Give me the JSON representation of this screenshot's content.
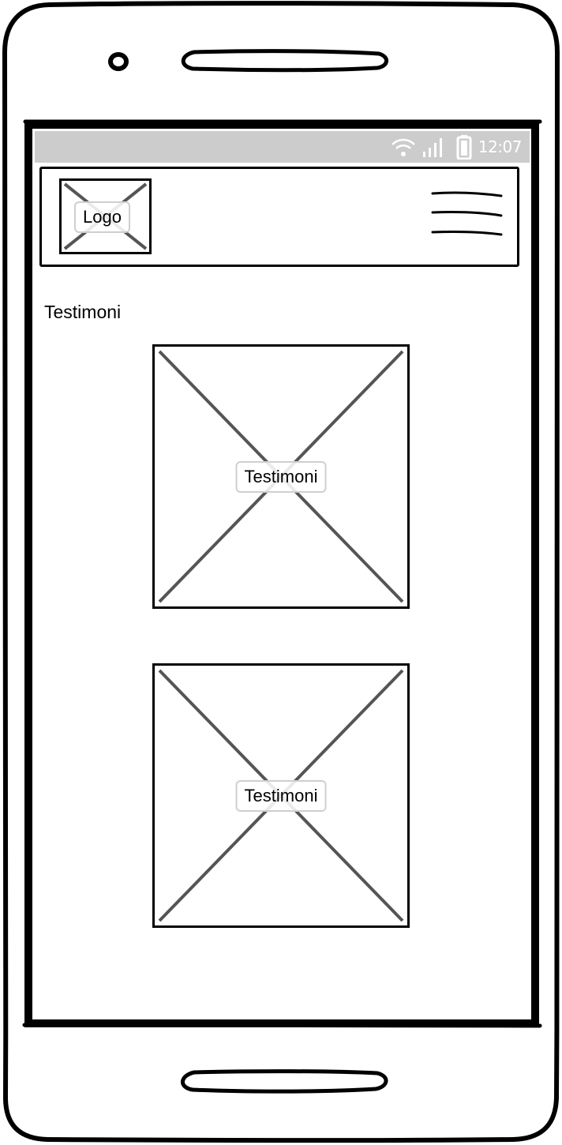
{
  "status_bar": {
    "time": "12:07",
    "icons": [
      "wifi-icon",
      "signal-icon",
      "battery-icon"
    ]
  },
  "header": {
    "logo_label": "Logo",
    "menu_icon": "hamburger-menu-icon"
  },
  "section": {
    "title": "Testimoni"
  },
  "testimonials": [
    {
      "label": "Testimoni"
    },
    {
      "label": "Testimoni"
    }
  ],
  "colors": {
    "status_bar_bg": "#cccccc",
    "frame": "#000000",
    "placeholder_cross": "#555555"
  }
}
